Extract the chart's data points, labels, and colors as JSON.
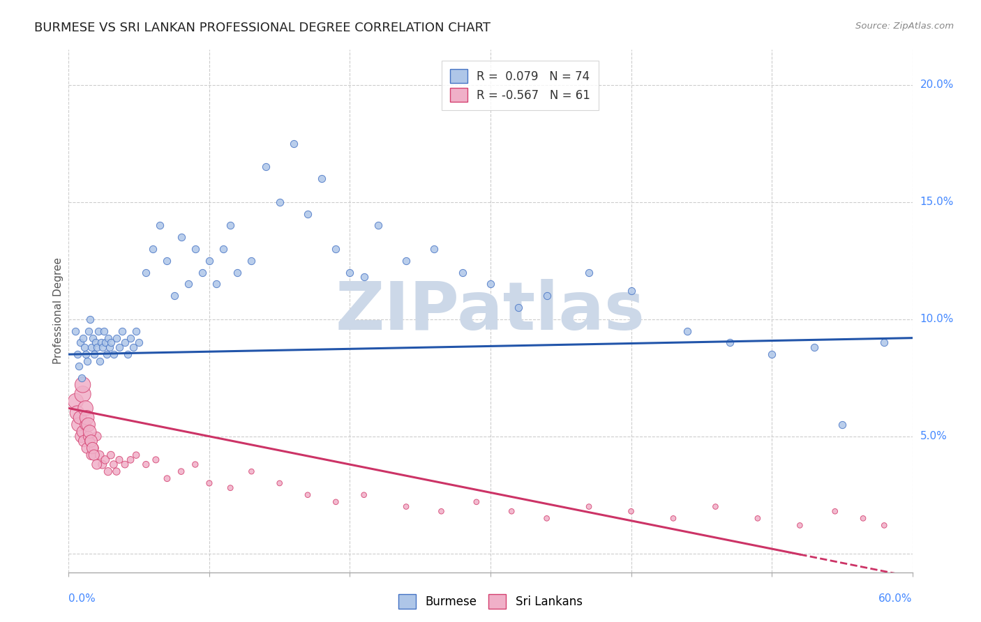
{
  "title": "BURMESE VS SRI LANKAN PROFESSIONAL DEGREE CORRELATION CHART",
  "source": "Source: ZipAtlas.com",
  "ylabel": "Professional Degree",
  "yticks": [
    0.0,
    0.05,
    0.1,
    0.15,
    0.2
  ],
  "ytick_labels": [
    "",
    "5.0%",
    "10.0%",
    "15.0%",
    "20.0%"
  ],
  "xlim": [
    0.0,
    0.6
  ],
  "ylim": [
    -0.008,
    0.215
  ],
  "burmese_color": "#aec6e8",
  "srilanka_color": "#f0b0c8",
  "burmese_edge_color": "#4472c4",
  "srilanka_edge_color": "#d44070",
  "burmese_line_color": "#2255aa",
  "srilanka_line_color": "#cc3366",
  "background_color": "#ffffff",
  "grid_color": "#cccccc",
  "title_fontsize": 13,
  "watermark_text": "ZIPatlas",
  "watermark_color": "#ccd8e8",
  "burmese_trend_start_y": 0.085,
  "burmese_trend_end_y": 0.092,
  "srilanka_trend_start_y": 0.062,
  "srilanka_trend_end_y": -0.01,
  "burmese_x": [
    0.005,
    0.006,
    0.007,
    0.008,
    0.009,
    0.01,
    0.011,
    0.012,
    0.013,
    0.014,
    0.015,
    0.016,
    0.017,
    0.018,
    0.019,
    0.02,
    0.021,
    0.022,
    0.023,
    0.024,
    0.025,
    0.026,
    0.027,
    0.028,
    0.029,
    0.03,
    0.032,
    0.034,
    0.036,
    0.038,
    0.04,
    0.042,
    0.044,
    0.046,
    0.048,
    0.05,
    0.055,
    0.06,
    0.065,
    0.07,
    0.075,
    0.08,
    0.085,
    0.09,
    0.095,
    0.1,
    0.105,
    0.11,
    0.115,
    0.12,
    0.13,
    0.14,
    0.15,
    0.16,
    0.17,
    0.18,
    0.19,
    0.2,
    0.21,
    0.22,
    0.24,
    0.26,
    0.28,
    0.3,
    0.32,
    0.34,
    0.37,
    0.4,
    0.44,
    0.47,
    0.5,
    0.53,
    0.55,
    0.58
  ],
  "burmese_y": [
    0.095,
    0.085,
    0.08,
    0.09,
    0.075,
    0.092,
    0.088,
    0.085,
    0.082,
    0.095,
    0.1,
    0.088,
    0.092,
    0.085,
    0.09,
    0.088,
    0.095,
    0.082,
    0.09,
    0.088,
    0.095,
    0.09,
    0.085,
    0.092,
    0.088,
    0.09,
    0.085,
    0.092,
    0.088,
    0.095,
    0.09,
    0.085,
    0.092,
    0.088,
    0.095,
    0.09,
    0.12,
    0.13,
    0.14,
    0.125,
    0.11,
    0.135,
    0.115,
    0.13,
    0.12,
    0.125,
    0.115,
    0.13,
    0.14,
    0.12,
    0.125,
    0.165,
    0.15,
    0.175,
    0.145,
    0.16,
    0.13,
    0.12,
    0.118,
    0.14,
    0.125,
    0.13,
    0.12,
    0.115,
    0.105,
    0.11,
    0.12,
    0.112,
    0.095,
    0.09,
    0.085,
    0.088,
    0.055,
    0.09
  ],
  "srilanka_x": [
    0.005,
    0.006,
    0.007,
    0.008,
    0.009,
    0.01,
    0.011,
    0.012,
    0.013,
    0.014,
    0.015,
    0.016,
    0.018,
    0.02,
    0.022,
    0.024,
    0.026,
    0.028,
    0.03,
    0.032,
    0.034,
    0.036,
    0.04,
    0.044,
    0.048,
    0.055,
    0.062,
    0.07,
    0.08,
    0.09,
    0.1,
    0.115,
    0.13,
    0.15,
    0.17,
    0.19,
    0.21,
    0.24,
    0.265,
    0.29,
    0.315,
    0.34,
    0.37,
    0.4,
    0.43,
    0.46,
    0.49,
    0.52,
    0.545,
    0.565,
    0.58,
    0.01,
    0.01,
    0.012,
    0.013,
    0.014,
    0.015,
    0.016,
    0.017,
    0.018,
    0.02
  ],
  "srilanka_y": [
    0.065,
    0.06,
    0.055,
    0.058,
    0.05,
    0.052,
    0.048,
    0.055,
    0.045,
    0.05,
    0.048,
    0.042,
    0.045,
    0.05,
    0.042,
    0.038,
    0.04,
    0.035,
    0.042,
    0.038,
    0.035,
    0.04,
    0.038,
    0.04,
    0.042,
    0.038,
    0.04,
    0.032,
    0.035,
    0.038,
    0.03,
    0.028,
    0.035,
    0.03,
    0.025,
    0.022,
    0.025,
    0.02,
    0.018,
    0.022,
    0.018,
    0.015,
    0.02,
    0.018,
    0.015,
    0.02,
    0.015,
    0.012,
    0.018,
    0.015,
    0.012,
    0.068,
    0.072,
    0.062,
    0.058,
    0.055,
    0.052,
    0.048,
    0.045,
    0.042,
    0.038
  ],
  "srilanka_size": [
    250,
    220,
    200,
    180,
    160,
    150,
    140,
    130,
    120,
    110,
    100,
    95,
    90,
    85,
    80,
    75,
    70,
    65,
    60,
    58,
    55,
    52,
    50,
    48,
    46,
    44,
    42,
    40,
    38,
    36,
    34,
    32,
    30,
    30,
    30,
    30,
    30,
    30,
    30,
    30,
    30,
    30,
    30,
    30,
    30,
    30,
    30,
    30,
    30,
    30,
    30,
    280,
    260,
    240,
    220,
    200,
    180,
    160,
    140,
    120,
    100
  ]
}
